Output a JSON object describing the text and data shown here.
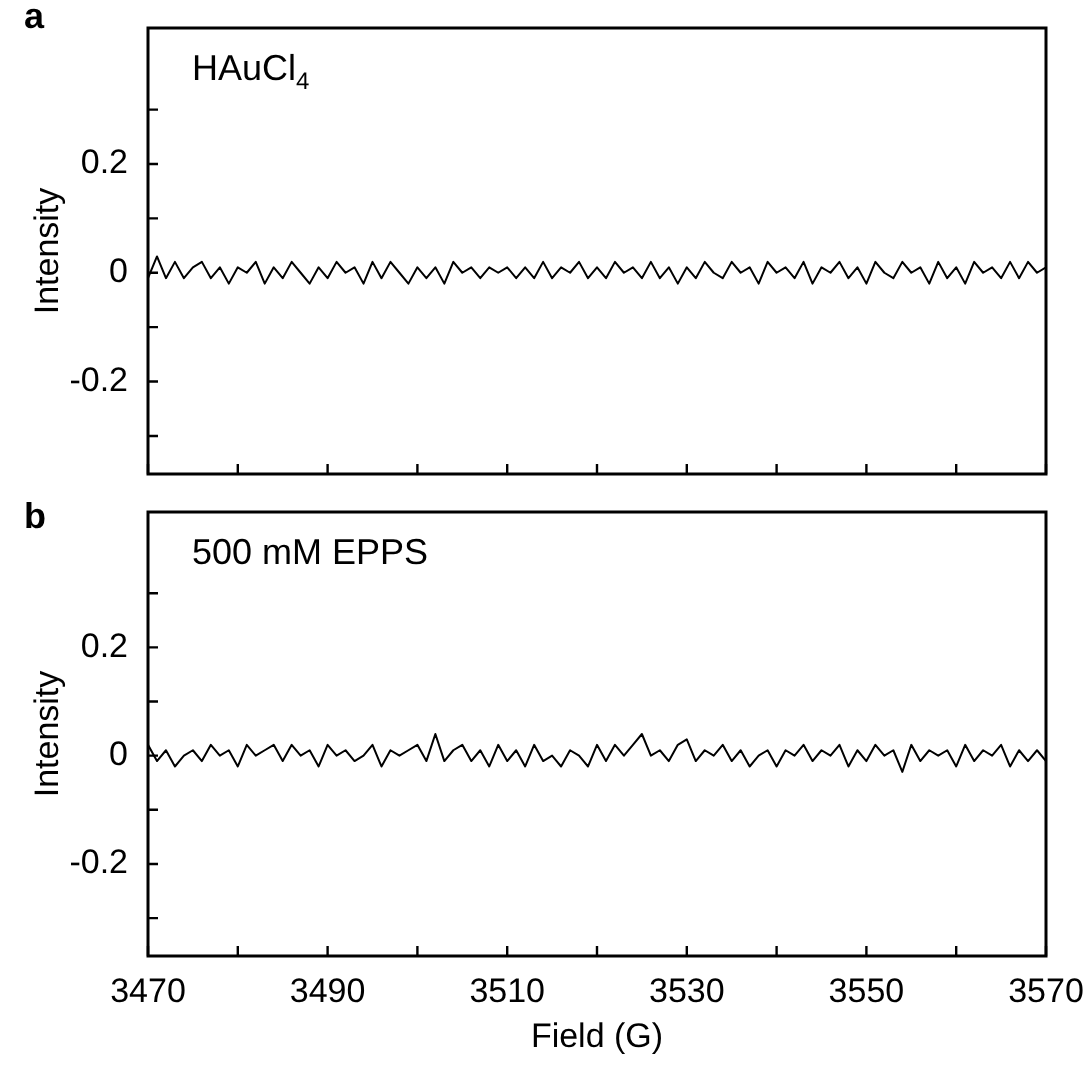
{
  "chart_data": [
    {
      "type": "line",
      "title": "a",
      "ylabel": "Intensity",
      "annotations": [
        "HAuCl$_{4}$"
      ],
      "xlim": [
        3470,
        3570
      ],
      "ylim": [
        -0.37,
        0.45
      ],
      "tick_labels": "y",
      "xticks": [
        3470,
        {
          "value": 3480,
          "label": null
        },
        3490,
        {
          "value": 3500,
          "label": null
        },
        3510,
        {
          "value": 3520,
          "label": null
        },
        3530,
        {
          "value": 3540,
          "label": null
        },
        3550,
        {
          "value": 3560,
          "label": null
        },
        3570
      ],
      "yticks": [
        {
          "value": -0.3,
          "label": null
        },
        -0.2,
        {
          "value": -0.1,
          "label": null
        },
        0,
        {
          "value": 0.1,
          "label": null
        },
        0.2,
        {
          "value": 0.3,
          "label": null
        }
      ],
      "x": [
        3470,
        3471,
        3472,
        3473,
        3474,
        3475,
        3476,
        3477,
        3478,
        3479,
        3480,
        3481,
        3482,
        3483,
        3484,
        3485,
        3486,
        3487,
        3488,
        3489,
        3490,
        3491,
        3492,
        3493,
        3494,
        3495,
        3496,
        3497,
        3498,
        3499,
        3500,
        3501,
        3502,
        3503,
        3504,
        3505,
        3506,
        3507,
        3508,
        3509,
        3510,
        3511,
        3512,
        3513,
        3514,
        3515,
        3516,
        3517,
        3518,
        3519,
        3520,
        3521,
        3522,
        3523,
        3524,
        3525,
        3526,
        3527,
        3528,
        3529,
        3530,
        3531,
        3532,
        3533,
        3534,
        3535,
        3536,
        3537,
        3538,
        3539,
        3540,
        3541,
        3542,
        3543,
        3544,
        3545,
        3546,
        3547,
        3548,
        3549,
        3550,
        3551,
        3552,
        3553,
        3554,
        3555,
        3556,
        3557,
        3558,
        3559,
        3560,
        3561,
        3562,
        3563,
        3564,
        3565,
        3566,
        3567,
        3568,
        3569,
        3570
      ],
      "series": [
        {
          "color": "#000000",
          "values": [
            -0.01,
            0.03,
            -0.01,
            0.02,
            -0.01,
            0.01,
            0.02,
            -0.01,
            0.01,
            -0.02,
            0.01,
            0.0,
            0.02,
            -0.02,
            0.01,
            -0.01,
            0.02,
            0.0,
            -0.02,
            0.01,
            -0.01,
            0.02,
            0.0,
            0.01,
            -0.02,
            0.02,
            -0.01,
            0.02,
            0.0,
            -0.02,
            0.01,
            -0.01,
            0.01,
            -0.02,
            0.02,
            0.0,
            0.01,
            -0.01,
            0.01,
            0.0,
            0.01,
            -0.01,
            0.01,
            -0.01,
            0.02,
            -0.01,
            0.01,
            0.0,
            0.02,
            -0.01,
            0.01,
            -0.01,
            0.02,
            0.0,
            0.01,
            -0.01,
            0.02,
            -0.01,
            0.01,
            -0.02,
            0.01,
            -0.01,
            0.02,
            0.0,
            -0.01,
            0.02,
            0.0,
            0.01,
            -0.02,
            0.02,
            0.0,
            0.01,
            -0.01,
            0.02,
            -0.02,
            0.01,
            0.0,
            0.02,
            -0.01,
            0.01,
            -0.02,
            0.02,
            0.0,
            -0.01,
            0.02,
            0.0,
            0.01,
            -0.02,
            0.02,
            -0.01,
            0.01,
            -0.02,
            0.02,
            0.0,
            0.01,
            -0.01,
            0.02,
            -0.01,
            0.02,
            0.0,
            0.01
          ]
        }
      ]
    },
    {
      "type": "line",
      "title": "b",
      "ylabel": "Intensity",
      "xlabel": "Field (G)",
      "annotations": [
        "500 mM EPPS"
      ],
      "xlim": [
        3470,
        3570
      ],
      "ylim": [
        -0.37,
        0.45
      ],
      "xticks": [
        3470,
        {
          "value": 3480,
          "label": null
        },
        3490,
        {
          "value": 3500,
          "label": null
        },
        3510,
        {
          "value": 3520,
          "label": null
        },
        3530,
        {
          "value": 3540,
          "label": null
        },
        3550,
        {
          "value": 3560,
          "label": null
        },
        3570
      ],
      "yticks": [
        {
          "value": -0.3,
          "label": null
        },
        -0.2,
        {
          "value": -0.1,
          "label": null
        },
        0,
        {
          "value": 0.1,
          "label": null
        },
        0.2,
        {
          "value": 0.3,
          "label": null
        }
      ],
      "x": [
        3470,
        3471,
        3472,
        3473,
        3474,
        3475,
        3476,
        3477,
        3478,
        3479,
        3480,
        3481,
        3482,
        3483,
        3484,
        3485,
        3486,
        3487,
        3488,
        3489,
        3490,
        3491,
        3492,
        3493,
        3494,
        3495,
        3496,
        3497,
        3498,
        3499,
        3500,
        3501,
        3502,
        3503,
        3504,
        3505,
        3506,
        3507,
        3508,
        3509,
        3510,
        3511,
        3512,
        3513,
        3514,
        3515,
        3516,
        3517,
        3518,
        3519,
        3520,
        3521,
        3522,
        3523,
        3524,
        3525,
        3526,
        3527,
        3528,
        3529,
        3530,
        3531,
        3532,
        3533,
        3534,
        3535,
        3536,
        3537,
        3538,
        3539,
        3540,
        3541,
        3542,
        3543,
        3544,
        3545,
        3546,
        3547,
        3548,
        3549,
        3550,
        3551,
        3552,
        3553,
        3554,
        3555,
        3556,
        3557,
        3558,
        3559,
        3560,
        3561,
        3562,
        3563,
        3564,
        3565,
        3566,
        3567,
        3568,
        3569,
        3570
      ],
      "series": [
        {
          "color": "#000000",
          "values": [
            0.02,
            -0.01,
            0.01,
            -0.02,
            0.0,
            0.01,
            -0.01,
            0.02,
            0.0,
            0.01,
            -0.02,
            0.02,
            0.0,
            0.01,
            0.02,
            -0.01,
            0.02,
            0.0,
            0.01,
            -0.02,
            0.02,
            0.0,
            0.01,
            -0.01,
            0.0,
            0.02,
            -0.02,
            0.01,
            0.0,
            0.01,
            0.02,
            -0.01,
            0.04,
            -0.01,
            0.01,
            0.02,
            -0.01,
            0.01,
            -0.02,
            0.02,
            -0.01,
            0.01,
            -0.02,
            0.02,
            -0.01,
            0.0,
            -0.02,
            0.01,
            0.0,
            -0.02,
            0.02,
            -0.01,
            0.02,
            0.0,
            0.02,
            0.04,
            0.0,
            0.01,
            -0.01,
            0.02,
            0.03,
            -0.01,
            0.01,
            0.0,
            0.02,
            -0.01,
            0.01,
            -0.02,
            0.0,
            0.01,
            -0.02,
            0.01,
            0.0,
            0.02,
            -0.01,
            0.01,
            0.0,
            0.02,
            -0.02,
            0.01,
            -0.01,
            0.02,
            0.0,
            0.01,
            -0.03,
            0.02,
            -0.01,
            0.01,
            0.0,
            0.01,
            -0.02,
            0.02,
            -0.01,
            0.01,
            0.0,
            0.02,
            -0.02,
            0.01,
            -0.01,
            0.01,
            -0.01
          ]
        }
      ]
    }
  ]
}
